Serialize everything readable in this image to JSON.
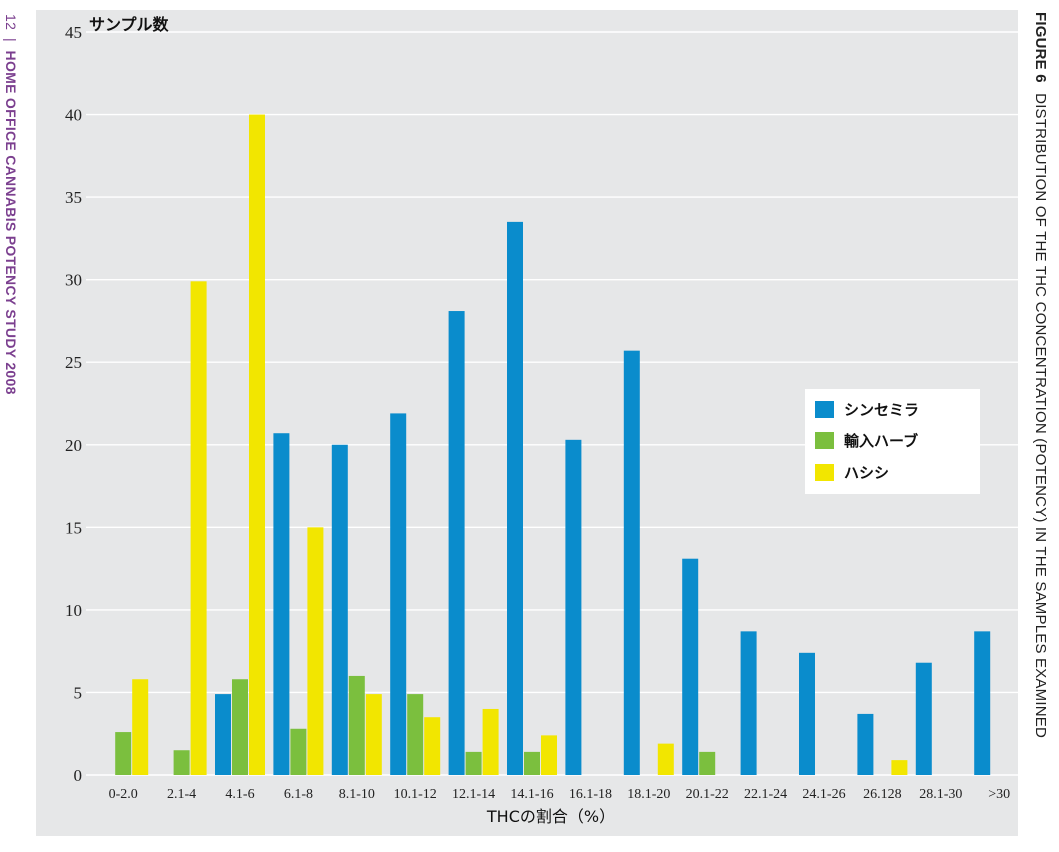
{
  "side_text": {
    "page_number": "12",
    "separator": "|",
    "study_title": "HOME OFFICE CANNABIS POTENCY STUDY 2008",
    "figure_label": "FIGURE 6",
    "figure_caption": "DISTRIBUTION OF THE THC CONCENTRATION (POTENCY) IN THE SAMPLES EXAMINED"
  },
  "chart_data": {
    "type": "bar",
    "title": "",
    "ylabel": "サンプル数",
    "xlabel": "THCの割合（%）",
    "ylim": [
      0,
      45
    ],
    "yticks": [
      0,
      5,
      10,
      15,
      20,
      25,
      30,
      35,
      40,
      45
    ],
    "grid": true,
    "legend_position": "right",
    "categories": [
      "0-2.0",
      "2.1-4",
      "4.1-6",
      "6.1-8",
      "8.1-10",
      "10.1-12",
      "12.1-14",
      "14.1-16",
      "16.1-18",
      "18.1-20",
      "20.1-22",
      "22.1-24",
      "24.1-26",
      "26.128",
      "28.1-30",
      ">30"
    ],
    "series": [
      {
        "name": "シンセミラ",
        "color": "#0a8ccc",
        "values": [
          0,
          0,
          4.9,
          20.7,
          20,
          21.9,
          28.1,
          33.5,
          20.3,
          25.7,
          13.1,
          8.7,
          7.4,
          3.7,
          6.8,
          8.7
        ]
      },
      {
        "name": "輸入ハーブ",
        "color": "#7bbf3e",
        "values": [
          2.6,
          1.5,
          5.8,
          2.8,
          6.0,
          4.9,
          1.4,
          1.4,
          0,
          0,
          1.4,
          0,
          0,
          0,
          0,
          0
        ]
      },
      {
        "name": "ハシシ",
        "color": "#f2e600",
        "values": [
          5.8,
          29.9,
          40.0,
          15.0,
          4.9,
          3.5,
          4.0,
          2.4,
          0,
          1.9,
          0,
          0,
          0,
          0.9,
          0,
          0
        ]
      }
    ]
  }
}
